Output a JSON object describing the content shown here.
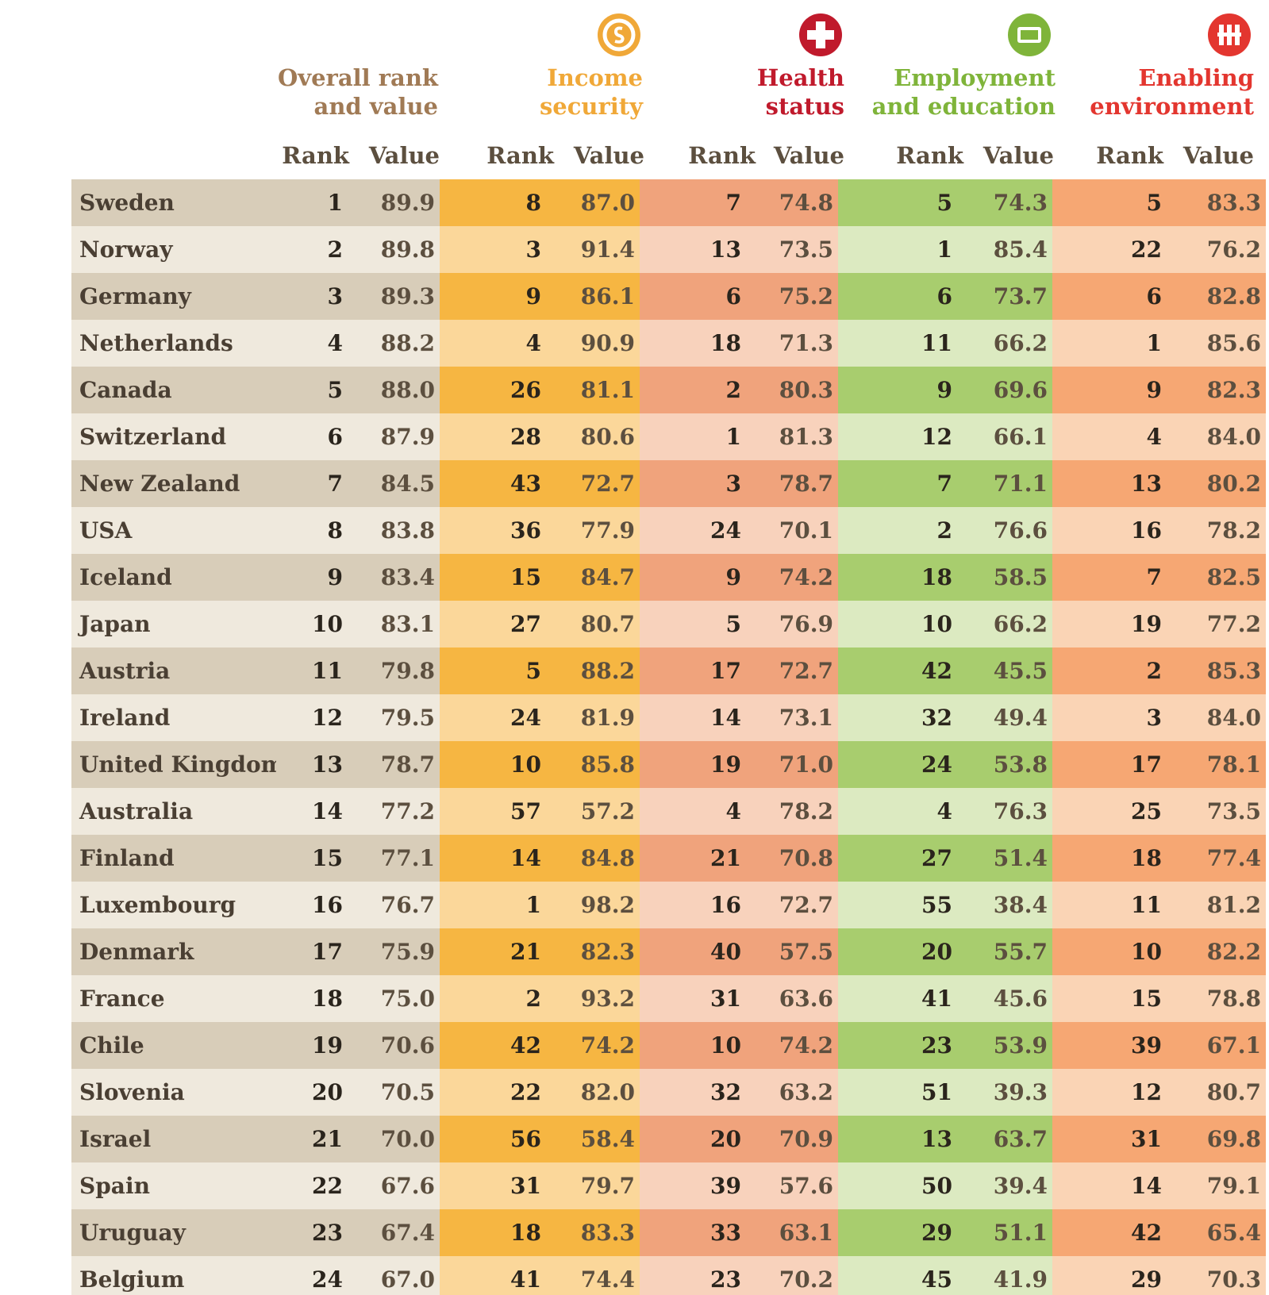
{
  "groups": [
    {
      "key": "overall",
      "title_line1": "Overall rank",
      "title_line2": "and value",
      "color": "#a07a55",
      "icon": null
    },
    {
      "key": "income",
      "title_line1": "Income",
      "title_line2": "security",
      "color": "#f0a838",
      "icon": "coin-icon"
    },
    {
      "key": "health",
      "title_line1": "Health",
      "title_line2": "status",
      "color": "#c01a2c",
      "icon": "health-cross-icon"
    },
    {
      "key": "employment",
      "title_line1": "Employment",
      "title_line2": "and education",
      "color": "#7fb43a",
      "icon": "employment-icon"
    },
    {
      "key": "environment",
      "title_line1": "Enabling",
      "title_line2": "environment",
      "color": "#e3362f",
      "icon": "people-icon"
    }
  ],
  "subheaders": {
    "rank": "Rank",
    "value": "Value"
  },
  "colors": {
    "overall_dark": "#d8cdb9",
    "overall_light": "#efe9dd",
    "income_dark": "#f6b642",
    "income_light": "#fbd79a",
    "health_dark": "#f0a37c",
    "health_light": "#f8d2bc",
    "employment_dark": "#a8cd6e",
    "employment_light": "#dceac1",
    "environment_dark": "#f6a773",
    "environment_light": "#fad4b5"
  },
  "rows": [
    {
      "country": "Sweden",
      "overall_rank": "1",
      "overall_value": "89.9",
      "income_rank": "8",
      "income_value": "87.0",
      "health_rank": "7",
      "health_value": "74.8",
      "employment_rank": "5",
      "employment_value": "74.3",
      "environment_rank": "5",
      "environment_value": "83.3"
    },
    {
      "country": "Norway",
      "overall_rank": "2",
      "overall_value": "89.8",
      "income_rank": "3",
      "income_value": "91.4",
      "health_rank": "13",
      "health_value": "73.5",
      "employment_rank": "1",
      "employment_value": "85.4",
      "environment_rank": "22",
      "environment_value": "76.2"
    },
    {
      "country": "Germany",
      "overall_rank": "3",
      "overall_value": "89.3",
      "income_rank": "9",
      "income_value": "86.1",
      "health_rank": "6",
      "health_value": "75.2",
      "employment_rank": "6",
      "employment_value": "73.7",
      "environment_rank": "6",
      "environment_value": "82.8"
    },
    {
      "country": "Netherlands",
      "overall_rank": "4",
      "overall_value": "88.2",
      "income_rank": "4",
      "income_value": "90.9",
      "health_rank": "18",
      "health_value": "71.3",
      "employment_rank": "11",
      "employment_value": "66.2",
      "environment_rank": "1",
      "environment_value": "85.6"
    },
    {
      "country": "Canada",
      "overall_rank": "5",
      "overall_value": "88.0",
      "income_rank": "26",
      "income_value": "81.1",
      "health_rank": "2",
      "health_value": "80.3",
      "employment_rank": "9",
      "employment_value": "69.6",
      "environment_rank": "9",
      "environment_value": "82.3"
    },
    {
      "country": "Switzerland",
      "overall_rank": "6",
      "overall_value": "87.9",
      "income_rank": "28",
      "income_value": "80.6",
      "health_rank": "1",
      "health_value": "81.3",
      "employment_rank": "12",
      "employment_value": "66.1",
      "environment_rank": "4",
      "environment_value": "84.0"
    },
    {
      "country": "New Zealand",
      "overall_rank": "7",
      "overall_value": "84.5",
      "income_rank": "43",
      "income_value": "72.7",
      "health_rank": "3",
      "health_value": "78.7",
      "employment_rank": "7",
      "employment_value": "71.1",
      "environment_rank": "13",
      "environment_value": "80.2"
    },
    {
      "country": "USA",
      "overall_rank": "8",
      "overall_value": "83.8",
      "income_rank": "36",
      "income_value": "77.9",
      "health_rank": "24",
      "health_value": "70.1",
      "employment_rank": "2",
      "employment_value": "76.6",
      "environment_rank": "16",
      "environment_value": "78.2"
    },
    {
      "country": "Iceland",
      "overall_rank": "9",
      "overall_value": "83.4",
      "income_rank": "15",
      "income_value": "84.7",
      "health_rank": "9",
      "health_value": "74.2",
      "employment_rank": "18",
      "employment_value": "58.5",
      "environment_rank": "7",
      "environment_value": "82.5"
    },
    {
      "country": "Japan",
      "overall_rank": "10",
      "overall_value": "83.1",
      "income_rank": "27",
      "income_value": "80.7",
      "health_rank": "5",
      "health_value": "76.9",
      "employment_rank": "10",
      "employment_value": "66.2",
      "environment_rank": "19",
      "environment_value": "77.2"
    },
    {
      "country": "Austria",
      "overall_rank": "11",
      "overall_value": "79.8",
      "income_rank": "5",
      "income_value": "88.2",
      "health_rank": "17",
      "health_value": "72.7",
      "employment_rank": "42",
      "employment_value": "45.5",
      "environment_rank": "2",
      "environment_value": "85.3"
    },
    {
      "country": "Ireland",
      "overall_rank": "12",
      "overall_value": "79.5",
      "income_rank": "24",
      "income_value": "81.9",
      "health_rank": "14",
      "health_value": "73.1",
      "employment_rank": "32",
      "employment_value": "49.4",
      "environment_rank": "3",
      "environment_value": "84.0"
    },
    {
      "country": "United Kingdom",
      "overall_rank": "13",
      "overall_value": "78.7",
      "income_rank": "10",
      "income_value": "85.8",
      "health_rank": "19",
      "health_value": "71.0",
      "employment_rank": "24",
      "employment_value": "53.8",
      "environment_rank": "17",
      "environment_value": "78.1"
    },
    {
      "country": "Australia",
      "overall_rank": "14",
      "overall_value": "77.2",
      "income_rank": "57",
      "income_value": "57.2",
      "health_rank": "4",
      "health_value": "78.2",
      "employment_rank": "4",
      "employment_value": "76.3",
      "environment_rank": "25",
      "environment_value": "73.5"
    },
    {
      "country": "Finland",
      "overall_rank": "15",
      "overall_value": "77.1",
      "income_rank": "14",
      "income_value": "84.8",
      "health_rank": "21",
      "health_value": "70.8",
      "employment_rank": "27",
      "employment_value": "51.4",
      "environment_rank": "18",
      "environment_value": "77.4"
    },
    {
      "country": "Luxembourg",
      "overall_rank": "16",
      "overall_value": "76.7",
      "income_rank": "1",
      "income_value": "98.2",
      "health_rank": "16",
      "health_value": "72.7",
      "employment_rank": "55",
      "employment_value": "38.4",
      "environment_rank": "11",
      "environment_value": "81.2"
    },
    {
      "country": "Denmark",
      "overall_rank": "17",
      "overall_value": "75.9",
      "income_rank": "21",
      "income_value": "82.3",
      "health_rank": "40",
      "health_value": "57.5",
      "employment_rank": "20",
      "employment_value": "55.7",
      "environment_rank": "10",
      "environment_value": "82.2"
    },
    {
      "country": "France",
      "overall_rank": "18",
      "overall_value": "75.0",
      "income_rank": "2",
      "income_value": "93.2",
      "health_rank": "31",
      "health_value": "63.6",
      "employment_rank": "41",
      "employment_value": "45.6",
      "environment_rank": "15",
      "environment_value": "78.8"
    },
    {
      "country": "Chile",
      "overall_rank": "19",
      "overall_value": "70.6",
      "income_rank": "42",
      "income_value": "74.2",
      "health_rank": "10",
      "health_value": "74.2",
      "employment_rank": "23",
      "employment_value": "53.9",
      "environment_rank": "39",
      "environment_value": "67.1"
    },
    {
      "country": "Slovenia",
      "overall_rank": "20",
      "overall_value": "70.5",
      "income_rank": "22",
      "income_value": "82.0",
      "health_rank": "32",
      "health_value": "63.2",
      "employment_rank": "51",
      "employment_value": "39.3",
      "environment_rank": "12",
      "environment_value": "80.7"
    },
    {
      "country": "Israel",
      "overall_rank": "21",
      "overall_value": "70.0",
      "income_rank": "56",
      "income_value": "58.4",
      "health_rank": "20",
      "health_value": "70.9",
      "employment_rank": "13",
      "employment_value": "63.7",
      "environment_rank": "31",
      "environment_value": "69.8"
    },
    {
      "country": "Spain",
      "overall_rank": "22",
      "overall_value": "67.6",
      "income_rank": "31",
      "income_value": "79.7",
      "health_rank": "39",
      "health_value": "57.6",
      "employment_rank": "50",
      "employment_value": "39.4",
      "environment_rank": "14",
      "environment_value": "79.1"
    },
    {
      "country": "Uruguay",
      "overall_rank": "23",
      "overall_value": "67.4",
      "income_rank": "18",
      "income_value": "83.3",
      "health_rank": "33",
      "health_value": "63.1",
      "employment_rank": "29",
      "employment_value": "51.1",
      "environment_rank": "42",
      "environment_value": "65.4"
    },
    {
      "country": "Belgium",
      "overall_rank": "24",
      "overall_value": "67.0",
      "income_rank": "41",
      "income_value": "74.4",
      "health_rank": "23",
      "health_value": "70.2",
      "employment_rank": "45",
      "employment_value": "41.9",
      "environment_rank": "29",
      "environment_value": "70.3"
    }
  ]
}
